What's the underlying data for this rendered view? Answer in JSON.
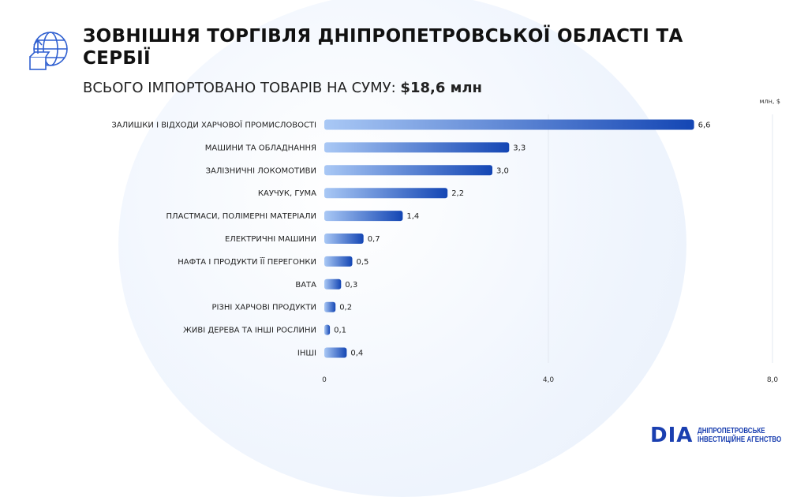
{
  "header": {
    "title": "ЗОВНІШНЯ ТОРГІВЛЯ ДНІПРОПЕТРОВСЬКОЇ ОБЛАСТІ ТА СЕРБІЇ",
    "subtitle_prefix": "ВСЬОГО ІМПОРТОВАНО ТОВАРІВ НА СУМУ:",
    "subtitle_value": "$18,6 млн",
    "icon": "globe-import-box-icon"
  },
  "logo": {
    "mark": "DIA",
    "line1": "ДНІПРОПЕТРОВСЬКЕ",
    "line2": "ІНВЕСТИЦІЙНЕ АГЕНСТВО"
  },
  "colors": {
    "bar_start": "#a9c8f5",
    "bar_end": "#1446b4",
    "accent": "#1a3fb0"
  },
  "chart_data": {
    "type": "bar",
    "orientation": "horizontal",
    "unit_label": "млн, $",
    "categories": [
      "ЗАЛИШКИ І ВІДХОДИ ХАРЧОВОЇ ПРОМИСЛОВОСТІ",
      "МАШИНИ ТА ОБЛАДНАННЯ",
      "ЗАЛІЗНИЧНІ ЛОКОМОТИВИ",
      "КАУЧУК, ГУМА",
      "ПЛАСТМАСИ, ПОЛІМЕРНІ МАТЕРІАЛИ",
      "ЕЛЕКТРИЧНІ МАШИНИ",
      "НАФТА І ПРОДУКТИ ЇЇ ПЕРЕГОНКИ",
      "ВАТА",
      "РІЗНІ ХАРЧОВІ ПРОДУКТИ",
      "ЖИВІ ДЕРЕВА ТА ІНШІ РОСЛИНИ",
      "ІНШІ"
    ],
    "values": [
      6.6,
      3.3,
      3.0,
      2.2,
      1.4,
      0.7,
      0.5,
      0.3,
      0.2,
      0.1,
      0.4
    ],
    "value_labels": [
      "6,6",
      "3,3",
      "3,0",
      "2,2",
      "1,4",
      "0,7",
      "0,5",
      "0,3",
      "0,2",
      "0,1",
      "0,4"
    ],
    "xlim": [
      0,
      8
    ],
    "ticks": [
      0,
      4,
      8
    ],
    "tick_labels": [
      "0",
      "4,0",
      "8,0"
    ],
    "grid": true
  }
}
